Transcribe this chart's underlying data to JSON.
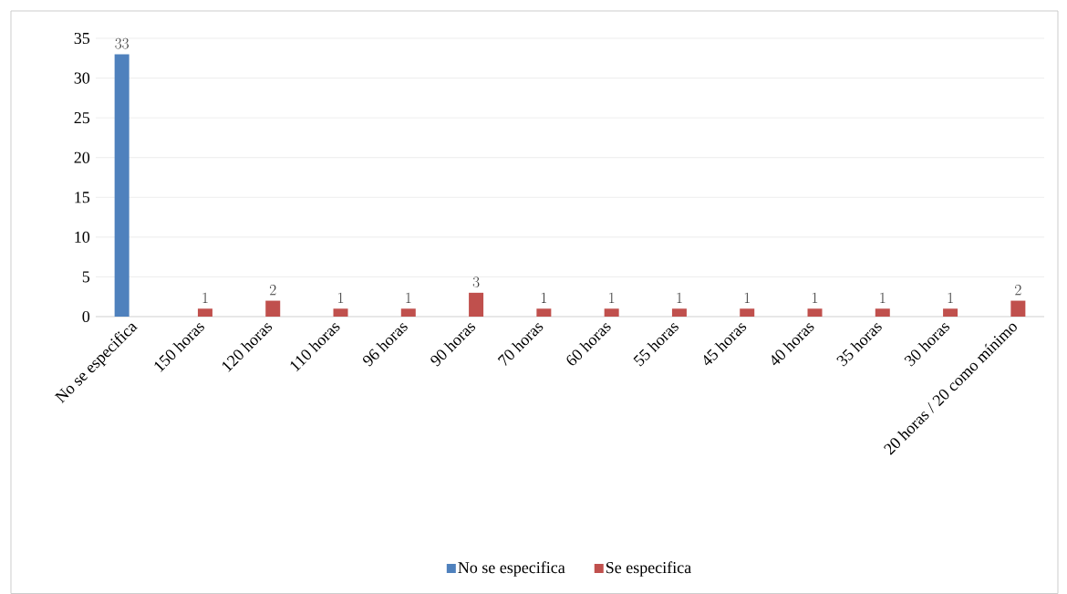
{
  "chart_data": {
    "type": "bar",
    "categories": [
      "No se especifica",
      "150 horas",
      "120 horas",
      "110 horas",
      "96 horas",
      "90 horas",
      "70 horas",
      "60 horas",
      "55 horas",
      "45 horas",
      "40 horas",
      "35 horas",
      "30 horas",
      "20 horas / 20 como mínimo"
    ],
    "series": [
      {
        "name": "No se especifica",
        "color": "#4f81bd",
        "values": [
          33,
          null,
          null,
          null,
          null,
          null,
          null,
          null,
          null,
          null,
          null,
          null,
          null,
          null
        ]
      },
      {
        "name": "Se especifica",
        "color": "#c0504d",
        "values": [
          null,
          1,
          2,
          1,
          1,
          3,
          1,
          1,
          1,
          1,
          1,
          1,
          1,
          2
        ]
      }
    ],
    "ylim": [
      0,
      35
    ],
    "yticks": [
      0,
      5,
      10,
      15,
      20,
      25,
      30,
      35
    ],
    "grid": "y",
    "legend": "bottom",
    "data_labels": true
  }
}
